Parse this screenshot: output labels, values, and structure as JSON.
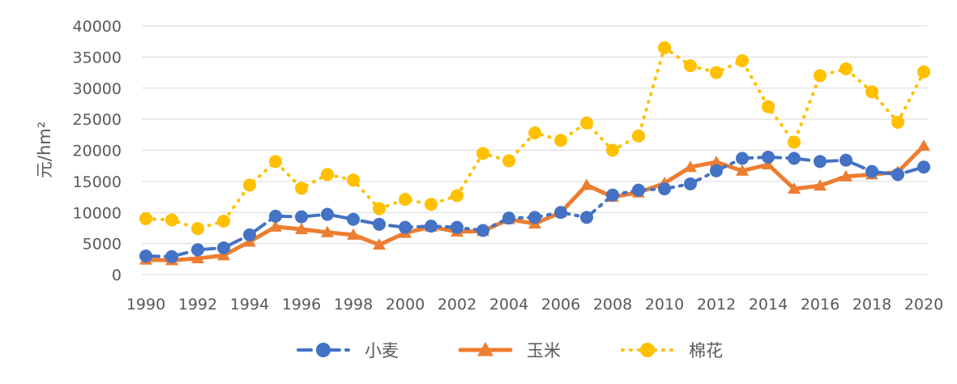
{
  "chart_data": {
    "type": "line",
    "title": "",
    "xlabel": "",
    "ylabel": "元/hm²",
    "ylim": [
      0,
      40000
    ],
    "yticks": [
      0,
      5000,
      10000,
      15000,
      20000,
      25000,
      30000,
      35000,
      40000
    ],
    "x": [
      1990,
      1991,
      1992,
      1993,
      1994,
      1995,
      1996,
      1997,
      1998,
      1999,
      2000,
      2001,
      2002,
      2003,
      2004,
      2005,
      2006,
      2007,
      2008,
      2009,
      2010,
      2011,
      2012,
      2013,
      2014,
      2015,
      2016,
      2017,
      2018,
      2019,
      2020
    ],
    "xticks": [
      1990,
      1992,
      1994,
      1996,
      1998,
      2000,
      2002,
      2004,
      2006,
      2008,
      2010,
      2012,
      2014,
      2016,
      2018,
      2020
    ],
    "grid": "horizontal",
    "legend_position": "bottom",
    "series": [
      {
        "name": "小麦",
        "color": "#4472C4",
        "line_style": "dash-dot",
        "marker": "circle",
        "values": [
          3000,
          2900,
          4000,
          4300,
          6400,
          9400,
          9300,
          9700,
          8900,
          8100,
          7600,
          7800,
          7600,
          7100,
          9100,
          9200,
          10000,
          9200,
          12800,
          13600,
          13800,
          14600,
          16700,
          18700,
          18900,
          18700,
          18200,
          18400,
          16600,
          16100,
          17300
        ]
      },
      {
        "name": "玉米",
        "color": "#ED7D31",
        "line_style": "solid",
        "marker": "triangle",
        "values": [
          2400,
          2300,
          2600,
          3100,
          5300,
          7700,
          7300,
          6800,
          6400,
          4800,
          6700,
          7700,
          6900,
          7000,
          8900,
          8200,
          10000,
          14400,
          12500,
          13200,
          14700,
          17300,
          18100,
          16700,
          17700,
          13800,
          14300,
          15800,
          16100,
          16500,
          20700
        ]
      },
      {
        "name": "棉花",
        "color": "#FFC000",
        "line_style": "dotted",
        "marker": "circle",
        "values": [
          9000,
          8800,
          7400,
          8600,
          14400,
          18200,
          13900,
          16100,
          15200,
          10600,
          12100,
          11300,
          12700,
          19500,
          18300,
          22800,
          21600,
          24400,
          20000,
          22300,
          36500,
          33600,
          32500,
          34400,
          27000,
          21300,
          32000,
          33100,
          29400,
          24500,
          32600
        ]
      }
    ]
  }
}
